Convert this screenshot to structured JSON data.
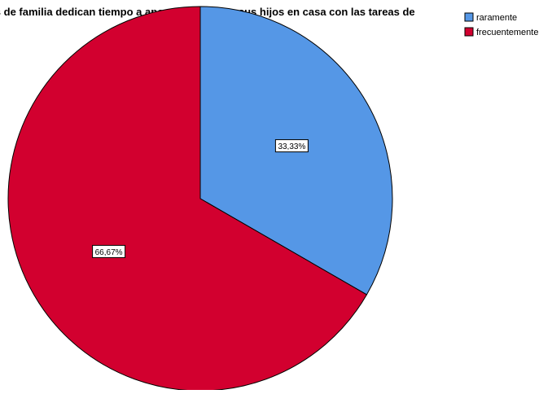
{
  "chart_data": {
    "type": "pie",
    "title": "adres de familia dedican tiempo a apoyar o ayudar a sus hijos en casa con las tareas de",
    "slices": [
      {
        "name": "raramente",
        "value": 33.33,
        "label": "33,33%",
        "color": "#5597e6"
      },
      {
        "name": "frecuentemente",
        "value": 66.67,
        "label": "66,67%",
        "color": "#d2002f"
      }
    ],
    "legend_position": "top-right"
  }
}
